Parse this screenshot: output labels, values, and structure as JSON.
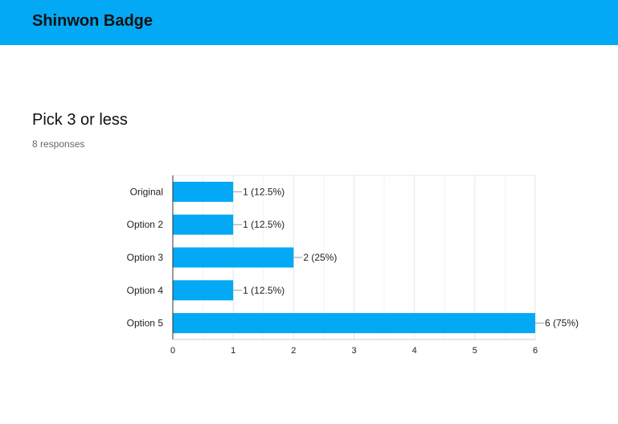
{
  "header": {
    "title": "Shinwon Badge"
  },
  "question": {
    "title": "Pick 3 or less",
    "responses": "8 responses"
  },
  "colors": {
    "header_bg": "#03a9f4",
    "bar": "#03a9f4"
  },
  "chart_data": {
    "type": "bar",
    "orientation": "horizontal",
    "categories": [
      "Original",
      "Option 2",
      "Option 3",
      "Option 4",
      "Option 5"
    ],
    "values": [
      1,
      1,
      2,
      1,
      6
    ],
    "data_labels": [
      "1 (12.5%)",
      "1 (12.5%)",
      "2 (25%)",
      "1 (12.5%)",
      "6 (75%)"
    ],
    "xlim": [
      0,
      6
    ],
    "xticks": [
      0,
      1,
      2,
      3,
      4,
      5,
      6
    ],
    "grid": true
  }
}
